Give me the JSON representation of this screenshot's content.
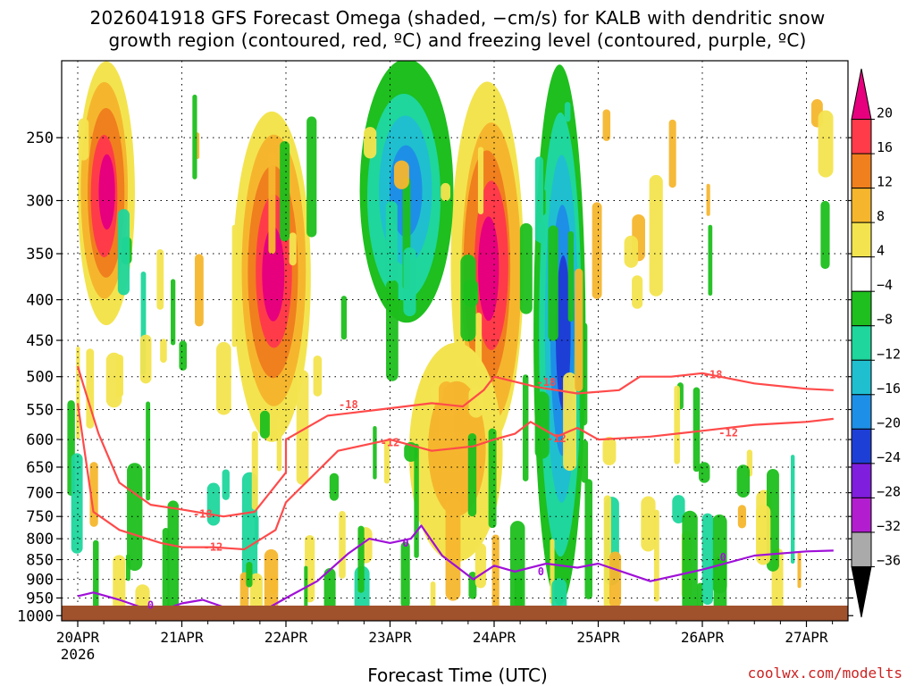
{
  "title_line1": "2026041918 GFS Forecast Omega (shaded, −cm/s) for KALB with dendritic snow",
  "title_line2": "growth region (contoured, red, ºC) and freezing level (contoured, purple, ºC)",
  "credit": "coolwx.com/modelts",
  "chart_data": {
    "type": "heatmap",
    "title": "2026041918 GFS Forecast Omega (shaded, −cm/s) for KALB with dendritic snow growth region (contoured, red, ºC) and freezing level (contoured, purple, ºC)",
    "xlabel": "Forecast Time (UTC)",
    "ylabel": "",
    "x_ticks": [
      "20APR",
      "21APR",
      "22APR",
      "23APR",
      "24APR",
      "25APR",
      "26APR",
      "27APR"
    ],
    "x_year_label": "2026",
    "y_ticks": [
      250,
      300,
      350,
      400,
      450,
      500,
      550,
      600,
      650,
      700,
      750,
      800,
      850,
      900,
      950,
      1000
    ],
    "y_axis_scale": "log-pressure",
    "grid": true,
    "colorbar": {
      "labels": [
        "20",
        "16",
        "12",
        "8",
        "4",
        "−4",
        "−8",
        "−12",
        "−16",
        "−20",
        "−24",
        "−28",
        "−32",
        "−36"
      ],
      "colors": [
        "#e6007e",
        "#ff3b4a",
        "#f07f1e",
        "#f5b62e",
        "#f3e44f",
        "#ffffff",
        "#1ebf1e",
        "#1fd69c",
        "#1fbfd0",
        "#1e8fe6",
        "#1e3fd6",
        "#7f1edc",
        "#b21ecf",
        "#aaaaaa",
        "#000000"
      ]
    },
    "contours": [
      {
        "name": "-18",
        "color": "#ff4a4a",
        "points": [
          [
            0.0,
            485
          ],
          [
            0.05,
            510
          ],
          [
            0.2,
            590
          ],
          [
            0.4,
            680
          ],
          [
            0.7,
            725
          ],
          [
            1.0,
            735
          ],
          [
            1.4,
            750
          ],
          [
            1.7,
            740
          ],
          [
            2.0,
            660
          ],
          [
            2.0,
            600
          ],
          [
            2.4,
            560
          ],
          [
            2.9,
            550
          ],
          [
            3.4,
            540
          ],
          [
            3.7,
            545
          ],
          [
            3.9,
            520
          ],
          [
            4.0,
            500
          ],
          [
            4.4,
            515
          ],
          [
            4.8,
            525
          ],
          [
            5.2,
            520
          ],
          [
            5.4,
            500
          ],
          [
            5.7,
            500
          ],
          [
            6.0,
            495
          ],
          [
            6.5,
            510
          ],
          [
            7.0,
            518
          ],
          [
            7.26,
            520
          ]
        ],
        "labels": [
          [
            1.2,
            745
          ],
          [
            2.6,
            542
          ],
          [
            4.5,
            508
          ],
          [
            6.1,
            497
          ]
        ]
      },
      {
        "name": "-12",
        "color": "#ff4a4a",
        "points": [
          [
            0.0,
            540
          ],
          [
            0.05,
            600
          ],
          [
            0.15,
            740
          ],
          [
            0.4,
            780
          ],
          [
            0.8,
            810
          ],
          [
            1.0,
            820
          ],
          [
            1.3,
            820
          ],
          [
            1.6,
            825
          ],
          [
            1.9,
            780
          ],
          [
            2.0,
            720
          ],
          [
            2.5,
            620
          ],
          [
            3.0,
            600
          ],
          [
            3.4,
            620
          ],
          [
            3.8,
            612
          ],
          [
            4.0,
            600
          ],
          [
            4.2,
            590
          ],
          [
            4.35,
            570
          ],
          [
            4.6,
            595
          ],
          [
            4.8,
            580
          ],
          [
            5.0,
            600
          ],
          [
            5.5,
            595
          ],
          [
            6.0,
            585
          ],
          [
            6.5,
            575
          ],
          [
            7.0,
            570
          ],
          [
            7.26,
            565
          ]
        ],
        "labels": [
          [
            1.3,
            820
          ],
          [
            3.0,
            605
          ],
          [
            4.6,
            598
          ],
          [
            6.25,
            588
          ]
        ]
      },
      {
        "name": "0",
        "color": "#a010d8",
        "points": [
          [
            0.0,
            945
          ],
          [
            0.15,
            935
          ],
          [
            0.4,
            955
          ],
          [
            0.6,
            975
          ],
          [
            0.8,
            985
          ],
          [
            1.0,
            965
          ],
          [
            1.2,
            955
          ],
          [
            1.4,
            975
          ],
          [
            1.7,
            1000
          ],
          [
            2.0,
            950
          ],
          [
            2.3,
            905
          ],
          [
            2.6,
            835
          ],
          [
            2.8,
            800
          ],
          [
            3.0,
            810
          ],
          [
            3.2,
            800
          ],
          [
            3.3,
            770
          ],
          [
            3.5,
            840
          ],
          [
            3.8,
            900
          ],
          [
            4.0,
            865
          ],
          [
            4.2,
            880
          ],
          [
            4.5,
            860
          ],
          [
            4.8,
            870
          ],
          [
            5.0,
            860
          ],
          [
            5.5,
            905
          ],
          [
            6.0,
            875
          ],
          [
            6.5,
            840
          ],
          [
            7.0,
            830
          ],
          [
            7.26,
            828
          ]
        ],
        "labels": [
          [
            0.7,
            970
          ],
          [
            3.15,
            810
          ],
          [
            4.45,
            880
          ],
          [
            6.2,
            845
          ]
        ]
      }
    ],
    "omega_features": [
      {
        "t_start": 0.0,
        "t_end": 0.55,
        "p_top": 200,
        "p_bottom": 430,
        "max": 20
      },
      {
        "t_start": 1.5,
        "t_end": 2.25,
        "p_top": 230,
        "p_bottom": 600,
        "max": 20
      },
      {
        "t_start": 3.6,
        "t_end": 4.3,
        "p_top": 215,
        "p_bottom": 620,
        "max": 20
      },
      {
        "t_start": 2.7,
        "t_end": 3.6,
        "p_top": 200,
        "p_bottom": 430,
        "min": -16
      },
      {
        "t_start": 3.2,
        "t_end": 4.1,
        "p_top": 450,
        "p_bottom": 850,
        "max": 8
      },
      {
        "t_start": 4.4,
        "t_end": 4.9,
        "p_top": 200,
        "p_bottom": 960,
        "min": -24
      }
    ]
  }
}
